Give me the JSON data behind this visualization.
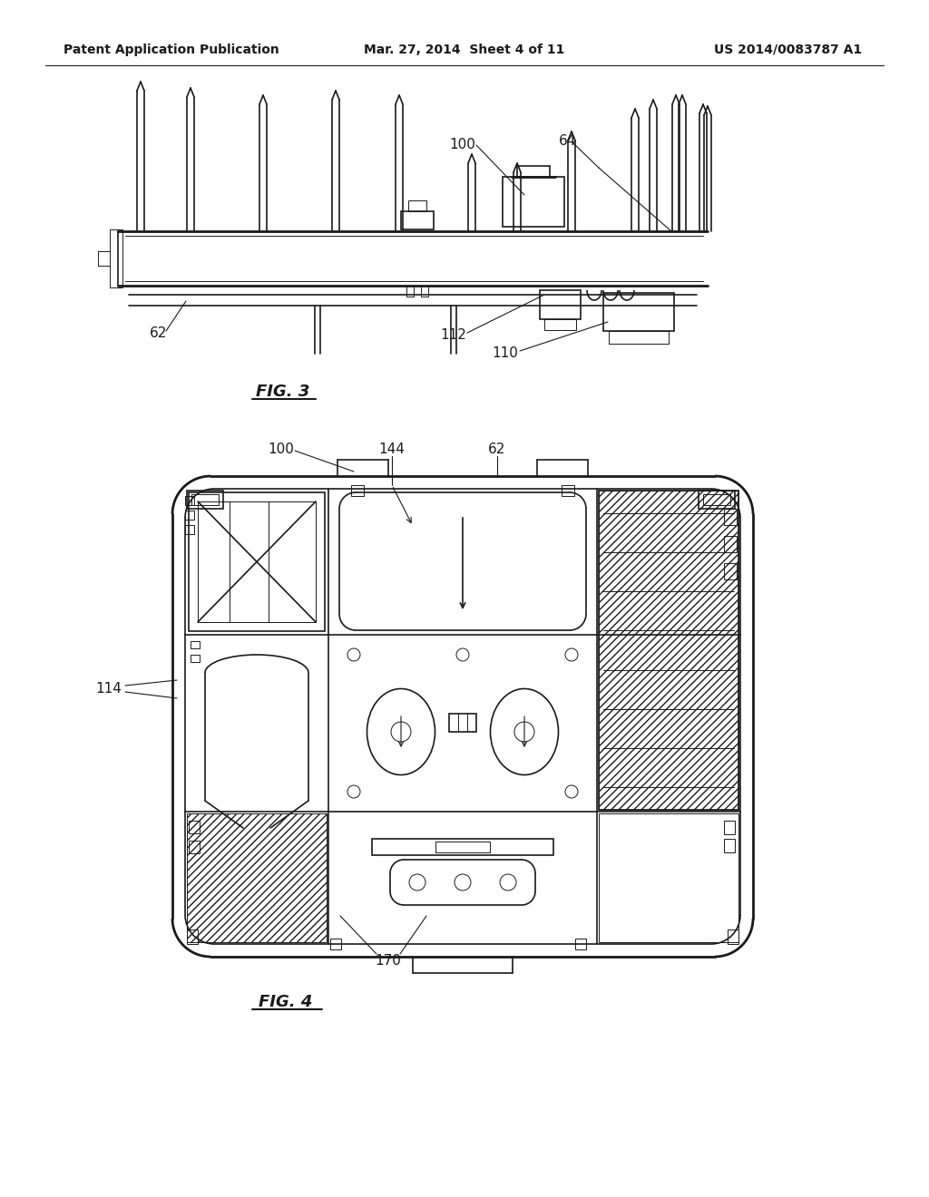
{
  "header_left": "Patent Application Publication",
  "header_mid": "Mar. 27, 2014  Sheet 4 of 11",
  "header_right": "US 2014/0083787 A1",
  "fig3_label": "FIG. 3",
  "fig4_label": "FIG. 4",
  "bg_color": "#ffffff",
  "line_color": "#1a1a1a"
}
